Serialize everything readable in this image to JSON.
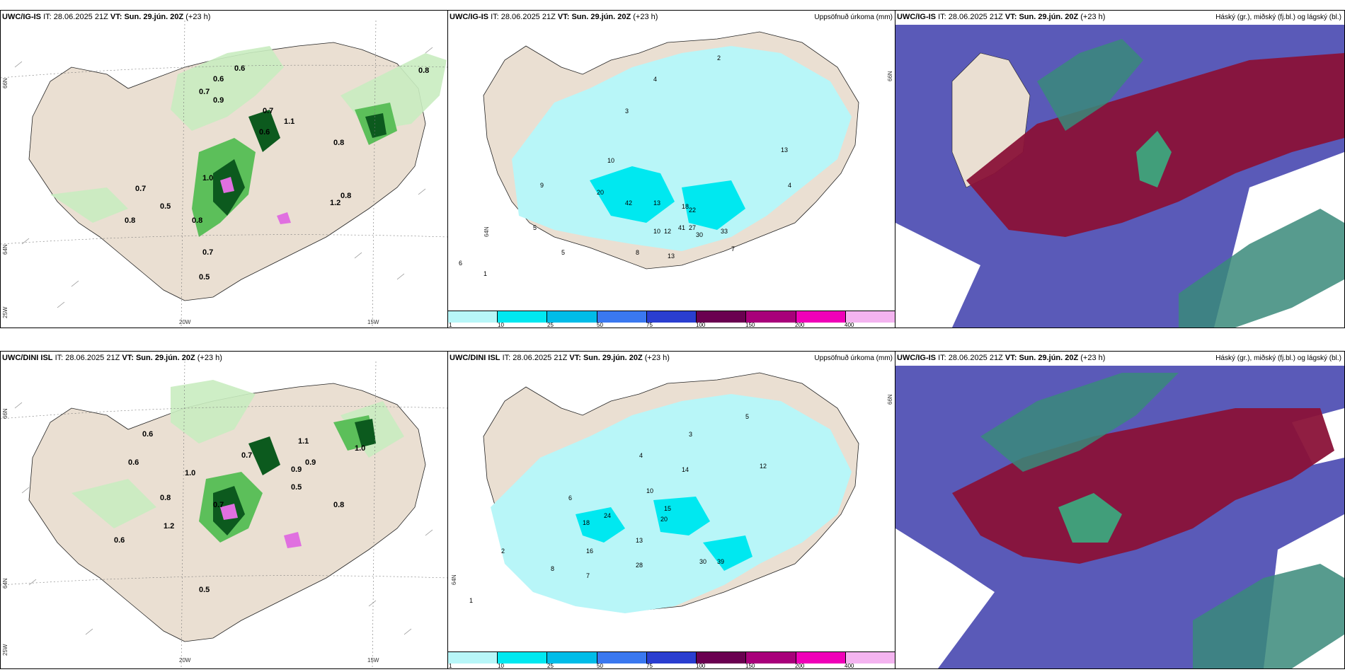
{
  "panels": {
    "top_left": {
      "model": "UWC/IG-IS",
      "it_label": "IT:",
      "it_value": "28.06.2025 21Z",
      "vt_label": "VT:",
      "vt_value": "Sun. 29.jún. 20Z",
      "lead": "(+23 h)",
      "title_right": ""
    },
    "top_mid": {
      "model": "UWC/IG-IS",
      "it_label": "IT:",
      "it_value": "28.06.2025 21Z",
      "vt_label": "VT:",
      "vt_value": "Sun. 29.jún. 20Z",
      "lead": "(+23 h)",
      "title_right": "Uppsöfnuð úrkoma (mm)"
    },
    "top_right": {
      "model": "UWC/IG-IS",
      "it_label": "IT:",
      "it_value": "28.06.2025 21Z",
      "vt_label": "VT:",
      "vt_value": "Sun. 29.jún. 20Z",
      "lead": "(+23 h)",
      "title_right": "Háský (gr.), miðský (fj.bl.) og lágský (bl.)"
    },
    "bot_left": {
      "model": "UWC/DINI ISL",
      "it_label": "IT:",
      "it_value": "28.06.2025 21Z",
      "vt_label": "VT:",
      "vt_value": "Sun. 29.jún. 20Z",
      "lead": "(+23 h)",
      "title_right": ""
    },
    "bot_mid": {
      "model": "UWC/DINI ISL",
      "it_label": "IT:",
      "it_value": "28.06.2025 21Z",
      "vt_label": "VT:",
      "vt_value": "Sun. 29.jún. 20Z",
      "lead": "(+23 h)",
      "title_right": "Uppsöfnuð úrkoma (mm)"
    },
    "bot_right": {
      "model": "UWC/IG-IS",
      "it_label": "IT:",
      "it_value": "28.06.2025 21Z",
      "vt_label": "VT:",
      "vt_value": "Sun. 29.jún. 20Z",
      "lead": "(+23 h)",
      "title_right": "Háský (gr.), miðský (fj.bl.) og lágský (bl.)"
    }
  },
  "grid_labels": {
    "lat_66": "66N",
    "lat_64": "64N",
    "lat_66_mid": "66N",
    "lat_64_mid": "64N",
    "lon_25": "25W",
    "lon_20": "20W",
    "lon_15": "15W"
  },
  "precip_legend": {
    "ticks": [
      "1",
      "10",
      "25",
      "50",
      "75",
      "100",
      "150",
      "200",
      "400"
    ],
    "colors": [
      "#b8f6f8",
      "#00e8f0",
      "#00bce8",
      "#3a78f0",
      "#2a3ed0",
      "#6a0050",
      "#a8007a",
      "#f000b8",
      "#f4b4f0"
    ]
  },
  "top_left_values": [
    "0.6",
    "0.7",
    "0.6",
    "0.9",
    "1.1",
    "0.8",
    "0.7",
    "0.6",
    "0.8",
    "1.0",
    "0.8",
    "0.7",
    "0.5",
    "0.8",
    "1.2",
    "0.8",
    "0.7",
    "0.5"
  ],
  "top_mid_values": [
    "3",
    "4",
    "2",
    "10",
    "13",
    "20",
    "42",
    "13",
    "18",
    "22",
    "30",
    "41",
    "27",
    "33",
    "9",
    "10",
    "12",
    "5",
    "8",
    "13",
    "6",
    "1",
    "5",
    "7",
    "4"
  ],
  "bot_left_values": [
    "0.6",
    "1.0",
    "0.7",
    "0.9",
    "1.1",
    "0.8",
    "0.6",
    "0.5",
    "0.7",
    "1.0",
    "1.2",
    "0.9",
    "0.5",
    "0.8",
    "0.6"
  ],
  "bot_mid_values": [
    "4",
    "3",
    "5",
    "10",
    "18",
    "28",
    "15",
    "12",
    "13",
    "30",
    "39",
    "14",
    "16",
    "7",
    "6",
    "2",
    "1",
    "8",
    "24",
    "20"
  ],
  "colors": {
    "land": "#eadfd2",
    "light_green": "#c9ecc0",
    "green": "#5cbf5a",
    "dark_green": "#0c5a1e",
    "cyan_light": "#b8f6f8",
    "cyan": "#00e8f0",
    "maroon": "#8a1238",
    "purple": "#5a5ab8",
    "teal": "#3a8a7a"
  }
}
